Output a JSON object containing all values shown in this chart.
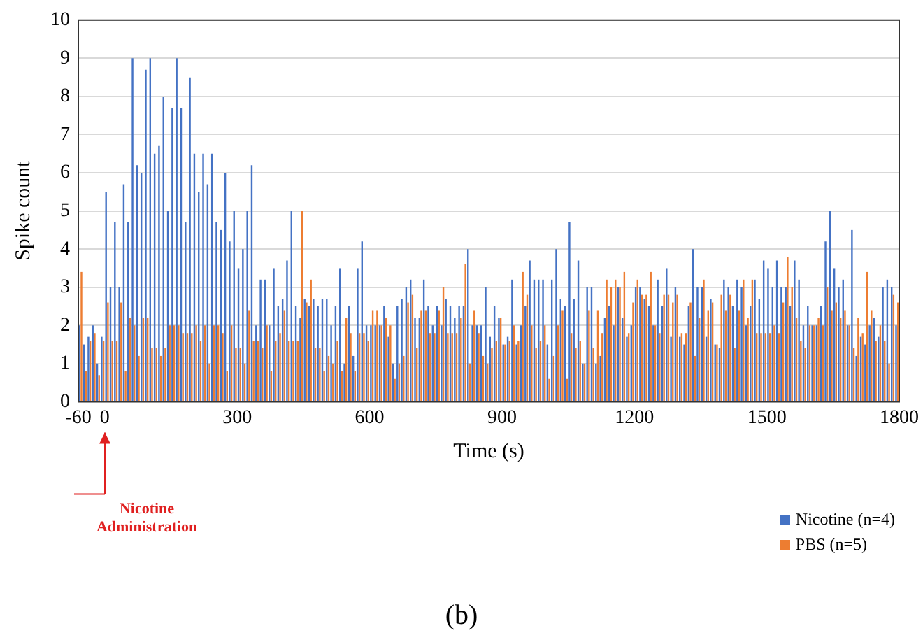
{
  "chart_data": {
    "type": "bar",
    "xlabel": "Time (s)",
    "ylabel": "Spike count",
    "x": [
      -55,
      -45,
      -35,
      -25,
      -15,
      -5,
      5,
      15,
      25,
      35,
      45,
      55,
      65,
      75,
      85,
      95,
      105,
      115,
      125,
      135,
      145,
      155,
      165,
      175,
      185,
      195,
      205,
      215,
      225,
      235,
      245,
      255,
      265,
      275,
      285,
      295,
      305,
      315,
      325,
      335,
      345,
      355,
      365,
      375,
      385,
      395,
      405,
      415,
      425,
      435,
      445,
      455,
      465,
      475,
      485,
      495,
      505,
      515,
      525,
      535,
      545,
      555,
      565,
      575,
      585,
      595,
      605,
      615,
      625,
      635,
      645,
      655,
      665,
      675,
      685,
      695,
      705,
      715,
      725,
      735,
      745,
      755,
      765,
      775,
      785,
      795,
      805,
      815,
      825,
      835,
      845,
      855,
      865,
      875,
      885,
      895,
      905,
      915,
      925,
      935,
      945,
      955,
      965,
      975,
      985,
      995,
      1005,
      1015,
      1025,
      1035,
      1045,
      1055,
      1065,
      1075,
      1085,
      1095,
      1105,
      1115,
      1125,
      1135,
      1145,
      1155,
      1165,
      1175,
      1185,
      1195,
      1205,
      1215,
      1225,
      1235,
      1245,
      1255,
      1265,
      1275,
      1285,
      1295,
      1305,
      1315,
      1325,
      1335,
      1345,
      1355,
      1365,
      1375,
      1385,
      1395,
      1405,
      1415,
      1425,
      1435,
      1445,
      1455,
      1465,
      1475,
      1485,
      1495,
      1505,
      1515,
      1525,
      1535,
      1545,
      1555,
      1565,
      1575,
      1585,
      1595,
      1605,
      1615,
      1625,
      1635,
      1645,
      1655,
      1665,
      1675,
      1685,
      1695,
      1705,
      1715,
      1725,
      1735,
      1745,
      1755,
      1765,
      1775,
      1785,
      1795
    ],
    "series": [
      {
        "name": "Nicotine (n=4)",
        "color": "#4472c4",
        "values": [
          2.0,
          1.5,
          1.7,
          2.0,
          1.0,
          1.7,
          5.5,
          3.0,
          4.7,
          3.0,
          5.7,
          4.7,
          9.0,
          6.2,
          6.0,
          8.7,
          9.0,
          6.5,
          6.7,
          8.0,
          5.0,
          7.7,
          9.0,
          7.7,
          4.7,
          8.5,
          6.5,
          5.5,
          6.5,
          5.7,
          6.5,
          4.7,
          4.5,
          6.0,
          4.2,
          5.0,
          3.5,
          4.0,
          5.0,
          6.2,
          2.0,
          3.2,
          3.2,
          2.0,
          3.5,
          2.5,
          2.7,
          3.7,
          5.0,
          2.5,
          2.2,
          2.7,
          2.5,
          2.7,
          2.5,
          2.7,
          2.7,
          2.0,
          2.5,
          3.5,
          1.0,
          2.5,
          1.2,
          3.5,
          4.2,
          2.0,
          2.0,
          2.0,
          2.0,
          2.5,
          1.7,
          1.0,
          2.5,
          2.7,
          3.0,
          3.2,
          2.2,
          2.2,
          3.2,
          2.5,
          2.0,
          2.5,
          2.0,
          2.7,
          2.5,
          2.2,
          2.5,
          2.5,
          4.0,
          2.0,
          2.0,
          2.0,
          3.0,
          1.7,
          2.5,
          2.2,
          1.5,
          1.7,
          3.2,
          1.5,
          2.0,
          2.5,
          3.7,
          3.2,
          3.2,
          3.2,
          1.5,
          3.2,
          4.0,
          2.7,
          2.5,
          4.7,
          2.7,
          3.7,
          1.0,
          3.0,
          3.0,
          1.0,
          1.2,
          2.2,
          2.5,
          2.0,
          3.0,
          2.2,
          1.7,
          2.0,
          3.0,
          3.0,
          2.7,
          2.5,
          2.0,
          3.2,
          2.5,
          3.5,
          1.7,
          3.0,
          1.7,
          1.5,
          2.5,
          4.0,
          3.0,
          3.0,
          1.7,
          2.7,
          1.5,
          1.4,
          3.2,
          3.0,
          2.5,
          3.2,
          3.0,
          2.0,
          2.5,
          3.2,
          2.7,
          3.7,
          3.5,
          3.0,
          3.7,
          3.0,
          3.0,
          2.5,
          3.7,
          3.2,
          2.0,
          2.5,
          2.0,
          2.0,
          2.5,
          4.2,
          5.0,
          3.5,
          3.0,
          3.2,
          2.0,
          4.5,
          1.2,
          1.7,
          1.5,
          2.0,
          2.2,
          1.7,
          3.0,
          3.2,
          3.0,
          2.0
        ]
      },
      {
        "name": "PBS (n=5)",
        "color": "#ed7d31",
        "values": [
          3.4,
          0.8,
          1.6,
          1.8,
          0.7,
          1.6,
          2.6,
          1.6,
          1.6,
          2.6,
          0.8,
          2.2,
          2.0,
          1.2,
          2.2,
          2.2,
          1.4,
          1.4,
          1.2,
          1.4,
          2.0,
          2.0,
          2.0,
          1.8,
          1.8,
          1.8,
          2.0,
          1.6,
          2.0,
          1.0,
          2.0,
          2.0,
          1.8,
          0.8,
          2.0,
          1.4,
          1.4,
          1.0,
          2.4,
          1.6,
          1.6,
          1.4,
          2.0,
          0.8,
          1.6,
          1.8,
          2.4,
          1.6,
          1.6,
          1.6,
          5.0,
          2.6,
          3.2,
          1.4,
          1.4,
          0.8,
          1.2,
          1.0,
          1.6,
          0.8,
          2.2,
          1.8,
          0.8,
          1.8,
          1.8,
          1.6,
          2.4,
          2.4,
          2.0,
          2.2,
          2.0,
          0.6,
          1.0,
          1.2,
          2.6,
          2.8,
          1.4,
          2.4,
          2.4,
          1.8,
          1.8,
          2.4,
          3.0,
          1.8,
          1.8,
          1.8,
          2.2,
          3.6,
          1.0,
          2.4,
          1.8,
          1.2,
          1.0,
          1.4,
          1.6,
          2.2,
          1.5,
          1.6,
          2.0,
          1.6,
          3.4,
          2.8,
          2.0,
          1.4,
          1.6,
          2.0,
          0.6,
          1.2,
          2.0,
          2.4,
          0.6,
          1.8,
          1.4,
          1.6,
          1.0,
          2.4,
          1.4,
          2.4,
          1.8,
          3.2,
          3.0,
          3.2,
          3.0,
          3.4,
          1.8,
          2.6,
          3.2,
          2.8,
          2.8,
          3.4,
          2.0,
          1.8,
          2.8,
          2.8,
          2.6,
          2.8,
          1.8,
          1.8,
          2.6,
          1.2,
          2.2,
          3.2,
          2.4,
          2.6,
          1.5,
          2.8,
          2.4,
          2.8,
          1.4,
          2.4,
          3.2,
          2.2,
          3.2,
          1.8,
          1.8,
          1.8,
          1.8,
          2.0,
          1.8,
          2.6,
          3.8,
          3.0,
          2.2,
          1.6,
          1.4,
          2.0,
          2.0,
          2.2,
          2.0,
          3.0,
          2.4,
          2.6,
          2.2,
          2.4,
          2.0,
          1.4,
          2.2,
          1.8,
          3.4,
          2.4,
          1.6,
          2.0,
          1.6,
          1.0,
          2.8,
          2.6
        ]
      }
    ],
    "xlim": [
      -60,
      1800
    ],
    "xticks": [
      -60,
      0,
      300,
      600,
      900,
      1200,
      1500,
      1800
    ],
    "ylim": [
      0,
      10
    ],
    "yticks": [
      0,
      1,
      2,
      3,
      4,
      5,
      6,
      7,
      8,
      9,
      10
    ],
    "grid": "y",
    "legend": "bottom right",
    "annotations": [
      "Nicotine Administration",
      "(b)"
    ]
  }
}
